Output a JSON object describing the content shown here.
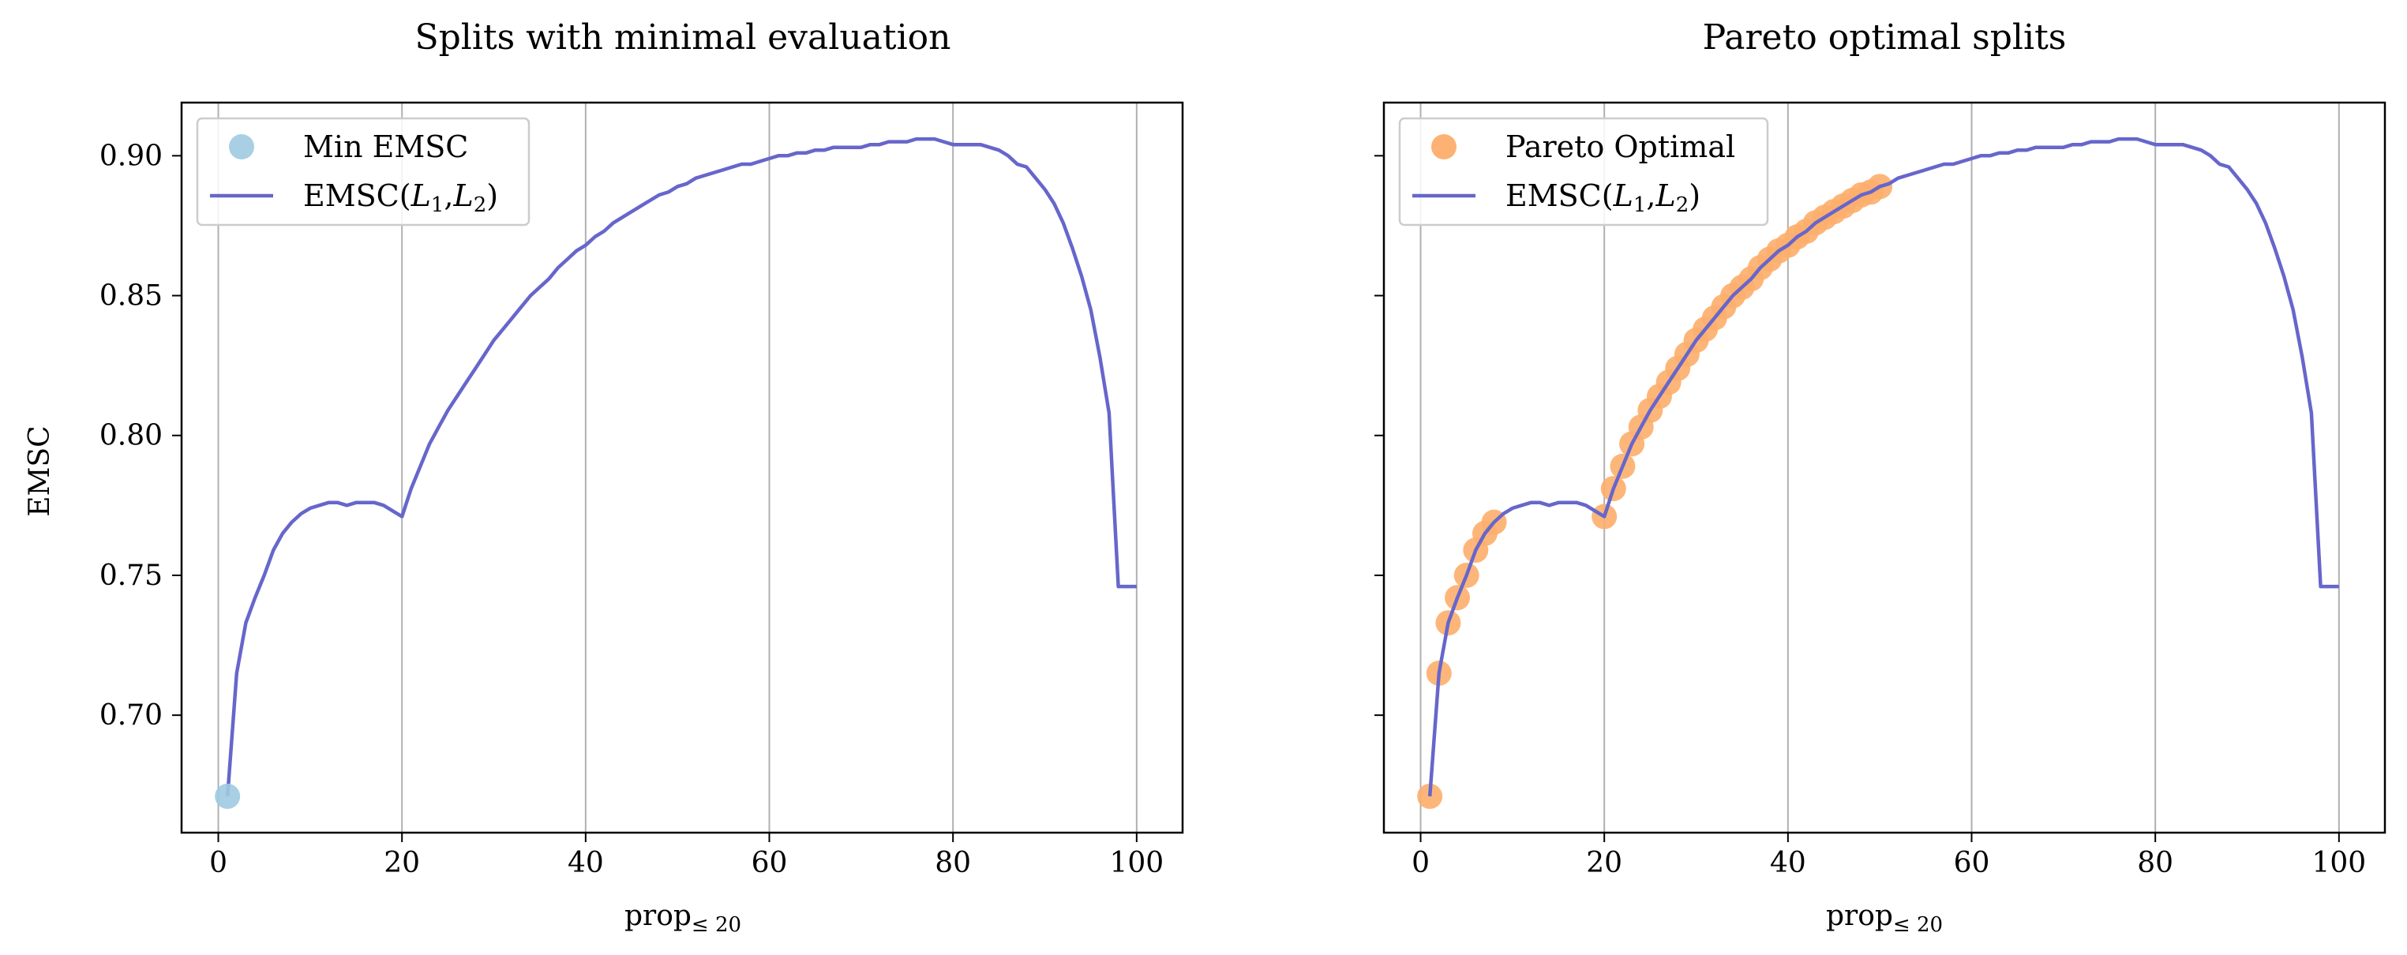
{
  "chart_data": [
    {
      "type": "line",
      "title": "Splits with minimal evaluation",
      "xlabel": "prop",
      "xlabel_sub": "≤ 20",
      "ylabel": "EMSC",
      "xlim": [
        -4,
        105
      ],
      "ylim": [
        0.658,
        0.919
      ],
      "xticks": [
        0,
        20,
        40,
        60,
        80,
        100
      ],
      "yticks": [
        0.7,
        0.75,
        0.8,
        0.85,
        0.9
      ],
      "grid": "x",
      "legend_position": "upper-left",
      "legend": [
        {
          "label": "Min EMSC",
          "kind": "marker"
        },
        {
          "label": "EMSC(",
          "sub1": "1",
          "sub2": "2",
          "kind": "line"
        }
      ],
      "line_color": "#6666cc",
      "marker_color": "#9ecae1",
      "series": [
        {
          "name": "EMSC(L1,L2)",
          "kind": "line",
          "x": [
            1,
            2,
            3,
            4,
            5,
            6,
            7,
            8,
            9,
            10,
            11,
            12,
            13,
            14,
            15,
            16,
            17,
            18,
            19,
            20,
            21,
            22,
            23,
            24,
            25,
            26,
            27,
            28,
            29,
            30,
            31,
            32,
            33,
            34,
            35,
            36,
            37,
            38,
            39,
            40,
            41,
            42,
            43,
            44,
            45,
            46,
            47,
            48,
            49,
            50,
            51,
            52,
            53,
            54,
            55,
            56,
            57,
            58,
            59,
            60,
            61,
            62,
            63,
            64,
            65,
            66,
            67,
            68,
            69,
            70,
            71,
            72,
            73,
            74,
            75,
            76,
            77,
            78,
            79,
            80,
            81,
            82,
            83,
            84,
            85,
            86,
            87,
            88,
            89,
            90,
            91,
            92,
            93,
            94,
            95,
            96,
            97,
            98,
            99,
            100
          ],
          "y": [
            0.671,
            0.715,
            0.733,
            0.742,
            0.75,
            0.759,
            0.765,
            0.769,
            0.772,
            0.774,
            0.775,
            0.776,
            0.776,
            0.775,
            0.776,
            0.776,
            0.776,
            0.775,
            0.773,
            0.771,
            0.781,
            0.789,
            0.797,
            0.803,
            0.809,
            0.814,
            0.819,
            0.824,
            0.829,
            0.834,
            0.838,
            0.842,
            0.846,
            0.85,
            0.853,
            0.856,
            0.86,
            0.863,
            0.866,
            0.868,
            0.871,
            0.873,
            0.876,
            0.878,
            0.88,
            0.882,
            0.884,
            0.886,
            0.887,
            0.889,
            0.89,
            0.892,
            0.893,
            0.894,
            0.895,
            0.896,
            0.897,
            0.897,
            0.898,
            0.899,
            0.9,
            0.9,
            0.901,
            0.901,
            0.902,
            0.902,
            0.903,
            0.903,
            0.903,
            0.903,
            0.904,
            0.904,
            0.905,
            0.905,
            0.905,
            0.906,
            0.906,
            0.906,
            0.905,
            0.904,
            0.904,
            0.904,
            0.904,
            0.903,
            0.902,
            0.9,
            0.897,
            0.896,
            0.892,
            0.888,
            0.883,
            0.876,
            0.867,
            0.857,
            0.845,
            0.828,
            0.808,
            0.746,
            0.746,
            0.746
          ]
        },
        {
          "name": "Min EMSC",
          "kind": "marker",
          "x": [
            1
          ],
          "y": [
            0.671
          ]
        }
      ]
    },
    {
      "type": "line",
      "title": "Pareto optimal splits",
      "xlabel": "prop",
      "xlabel_sub": "≤ 20",
      "ylabel": "",
      "xlim": [
        -4,
        105
      ],
      "ylim": [
        0.658,
        0.919
      ],
      "xticks": [
        0,
        20,
        40,
        60,
        80,
        100
      ],
      "yticks": [
        0.7,
        0.75,
        0.8,
        0.85,
        0.9
      ],
      "grid": "x",
      "legend_position": "upper-left",
      "legend": [
        {
          "label": "Pareto Optimal",
          "kind": "marker"
        },
        {
          "label": "EMSC(",
          "sub1": "1",
          "sub2": "2",
          "kind": "line"
        }
      ],
      "line_color": "#6666cc",
      "marker_color": "#fdae6b",
      "series": [
        {
          "name": "EMSC(L1,L2)",
          "kind": "line",
          "x": [
            1,
            2,
            3,
            4,
            5,
            6,
            7,
            8,
            9,
            10,
            11,
            12,
            13,
            14,
            15,
            16,
            17,
            18,
            19,
            20,
            21,
            22,
            23,
            24,
            25,
            26,
            27,
            28,
            29,
            30,
            31,
            32,
            33,
            34,
            35,
            36,
            37,
            38,
            39,
            40,
            41,
            42,
            43,
            44,
            45,
            46,
            47,
            48,
            49,
            50,
            51,
            52,
            53,
            54,
            55,
            56,
            57,
            58,
            59,
            60,
            61,
            62,
            63,
            64,
            65,
            66,
            67,
            68,
            69,
            70,
            71,
            72,
            73,
            74,
            75,
            76,
            77,
            78,
            79,
            80,
            81,
            82,
            83,
            84,
            85,
            86,
            87,
            88,
            89,
            90,
            91,
            92,
            93,
            94,
            95,
            96,
            97,
            98,
            99,
            100
          ],
          "y": [
            0.671,
            0.715,
            0.733,
            0.742,
            0.75,
            0.759,
            0.765,
            0.769,
            0.772,
            0.774,
            0.775,
            0.776,
            0.776,
            0.775,
            0.776,
            0.776,
            0.776,
            0.775,
            0.773,
            0.771,
            0.781,
            0.789,
            0.797,
            0.803,
            0.809,
            0.814,
            0.819,
            0.824,
            0.829,
            0.834,
            0.838,
            0.842,
            0.846,
            0.85,
            0.853,
            0.856,
            0.86,
            0.863,
            0.866,
            0.868,
            0.871,
            0.873,
            0.876,
            0.878,
            0.88,
            0.882,
            0.884,
            0.886,
            0.887,
            0.889,
            0.89,
            0.892,
            0.893,
            0.894,
            0.895,
            0.896,
            0.897,
            0.897,
            0.898,
            0.899,
            0.9,
            0.9,
            0.901,
            0.901,
            0.902,
            0.902,
            0.903,
            0.903,
            0.903,
            0.903,
            0.904,
            0.904,
            0.905,
            0.905,
            0.905,
            0.906,
            0.906,
            0.906,
            0.905,
            0.904,
            0.904,
            0.904,
            0.904,
            0.903,
            0.902,
            0.9,
            0.897,
            0.896,
            0.892,
            0.888,
            0.883,
            0.876,
            0.867,
            0.857,
            0.845,
            0.828,
            0.808,
            0.746,
            0.746,
            0.746
          ]
        },
        {
          "name": "Pareto Optimal",
          "kind": "marker",
          "x": [
            1,
            2,
            3,
            4,
            5,
            6,
            7,
            8,
            20,
            21,
            22,
            23,
            24,
            25,
            26,
            27,
            28,
            29,
            30,
            31,
            32,
            33,
            34,
            35,
            36,
            37,
            38,
            39,
            40,
            41,
            42,
            43,
            44,
            45,
            46,
            47,
            48,
            49,
            50
          ],
          "y": [
            0.671,
            0.715,
            0.733,
            0.742,
            0.75,
            0.759,
            0.765,
            0.769,
            0.771,
            0.781,
            0.789,
            0.797,
            0.803,
            0.809,
            0.814,
            0.819,
            0.824,
            0.829,
            0.834,
            0.838,
            0.842,
            0.846,
            0.85,
            0.853,
            0.856,
            0.86,
            0.863,
            0.866,
            0.868,
            0.871,
            0.873,
            0.876,
            0.878,
            0.88,
            0.882,
            0.884,
            0.886,
            0.887,
            0.889
          ]
        }
      ]
    }
  ]
}
